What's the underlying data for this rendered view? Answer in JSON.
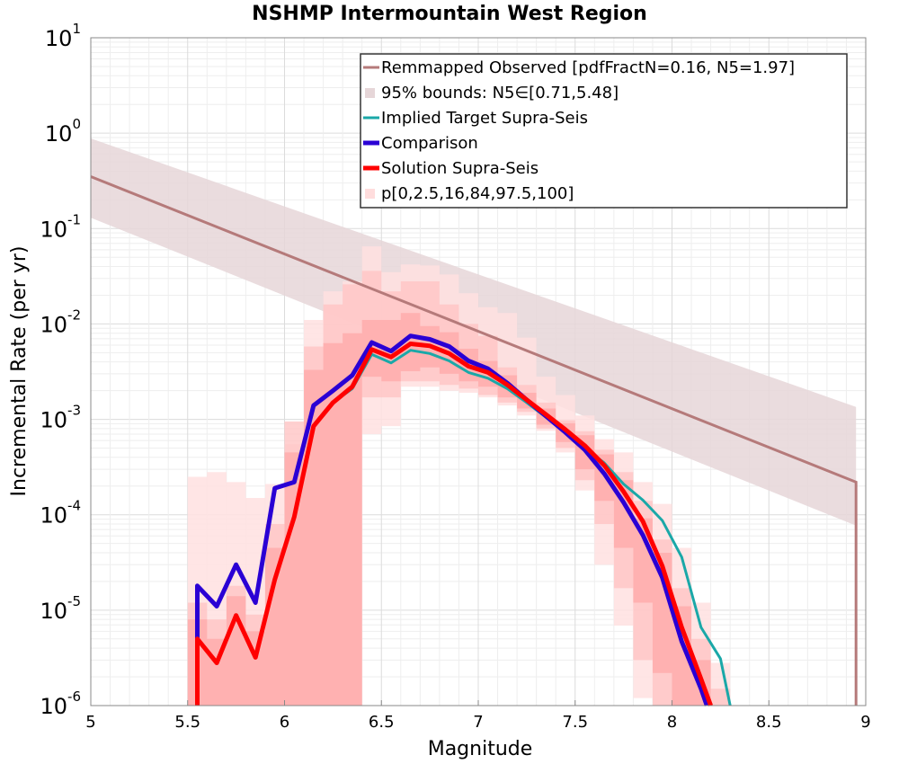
{
  "chart_data": {
    "type": "line",
    "title": "NSHMP Intermountain West Region",
    "xlabel": "Magnitude",
    "ylabel": "Incremental Rate (per yr)",
    "xlim": [
      5,
      9
    ],
    "ylim": [
      1e-06,
      10
    ],
    "yscale": "log",
    "grid": true,
    "legend_position": "top-right",
    "x_ticks": [
      "5",
      "5.5",
      "6",
      "6.5",
      "7",
      "7.5",
      "8",
      "8.5",
      "9"
    ],
    "y_ticks": [
      {
        "base": "10",
        "exp": "1"
      },
      {
        "base": "10",
        "exp": "0"
      },
      {
        "base": "10",
        "exp": "-1"
      },
      {
        "base": "10",
        "exp": "-2"
      },
      {
        "base": "10",
        "exp": "-3"
      },
      {
        "base": "10",
        "exp": "-4"
      },
      {
        "base": "10",
        "exp": "-5"
      },
      {
        "base": "10",
        "exp": "-6"
      }
    ],
    "legend": [
      {
        "label": "Remmapped Observed [pdfFractN=0.16, N5=1.97]",
        "color": "#b57a7a",
        "kind": "line"
      },
      {
        "label": "95% bounds: N5∈[0.71,5.48]",
        "color": "#e6d6d8",
        "kind": "band"
      },
      {
        "label": "Implied Target Supra-Seis",
        "color": "#1aa8a8",
        "kind": "line"
      },
      {
        "label": "Comparison",
        "color": "#2a00d4",
        "kind": "thick"
      },
      {
        "label": "Solution Supra-Seis",
        "color": "#ff0000",
        "kind": "thick"
      },
      {
        "label": "p[0,2.5,16,84,97.5,100]",
        "color": "#ffdddd",
        "kind": "band"
      }
    ],
    "colors": {
      "observed": "#b57a7a",
      "observed_band": "#e6d6d8",
      "target": "#1aa8a8",
      "comparison": "#2a00d4",
      "solution": "#ff0000",
      "band_outer": "#ffe0e0",
      "band_mid": "#ffc4c4",
      "band_inner": "#ffa8a8",
      "grid": "#e4e4e4"
    },
    "series": [
      {
        "name": "Remmapped Observed [pdfFractN=0.16, N5=1.97]",
        "x": [
          5.0,
          8.95,
          8.95
        ],
        "y": [
          0.35,
          0.00022,
          1e-06
        ]
      },
      {
        "name": "95% bounds: N5∈[0.71,5.48]",
        "x": [
          5.0,
          8.95
        ],
        "y_lower": [
          0.13,
          7.7e-05
        ],
        "y_upper": [
          0.88,
          0.00135
        ]
      },
      {
        "name": "Implied Target Supra-Seis",
        "x": [
          5.55,
          5.55,
          5.65,
          5.75,
          5.85,
          5.95,
          6.05,
          6.15,
          6.25,
          6.35,
          6.45,
          6.55,
          6.65,
          6.75,
          6.85,
          6.95,
          7.05,
          7.15,
          7.25,
          7.35,
          7.45,
          7.55,
          7.65,
          7.75,
          7.85,
          7.95,
          8.05,
          8.15,
          8.25,
          8.3
        ],
        "y": [
          1e-06,
          5e-06,
          2.8e-06,
          8.8e-06,
          3.2e-06,
          2.1e-05,
          9.5e-05,
          0.00085,
          0.0015,
          0.0021,
          0.0048,
          0.0039,
          0.0053,
          0.0049,
          0.0041,
          0.0031,
          0.0027,
          0.0021,
          0.0015,
          0.00105,
          0.00072,
          0.0005,
          0.00035,
          0.00021,
          0.000142,
          8.7e-05,
          3.6e-05,
          6.6e-06,
          3.1e-06,
          1e-06
        ]
      },
      {
        "name": "Comparison",
        "x": [
          5.55,
          5.55,
          5.65,
          5.75,
          5.85,
          5.95,
          6.05,
          6.15,
          6.25,
          6.35,
          6.45,
          6.55,
          6.65,
          6.75,
          6.85,
          6.95,
          7.05,
          7.15,
          7.25,
          7.35,
          7.45,
          7.55,
          7.65,
          7.75,
          7.85,
          7.95,
          8.05,
          8.15,
          8.18
        ],
        "y": [
          1e-06,
          1.8e-05,
          1.1e-05,
          3e-05,
          1.2e-05,
          0.00019,
          0.00022,
          0.0014,
          0.002,
          0.0029,
          0.0064,
          0.0052,
          0.0075,
          0.0069,
          0.0058,
          0.0041,
          0.0034,
          0.0024,
          0.0016,
          0.00108,
          0.00073,
          0.00048,
          0.00027,
          0.000135,
          6.1e-05,
          2.2e-05,
          4.7e-06,
          1.5e-06,
          1e-06
        ]
      },
      {
        "name": "Solution Supra-Seis",
        "x": [
          5.55,
          5.55,
          5.65,
          5.75,
          5.85,
          5.95,
          6.05,
          6.15,
          6.25,
          6.35,
          6.45,
          6.55,
          6.65,
          6.75,
          6.85,
          6.95,
          7.05,
          7.15,
          7.25,
          7.35,
          7.45,
          7.55,
          7.65,
          7.75,
          7.85,
          7.95,
          8.05,
          8.15,
          8.2
        ],
        "y": [
          1e-06,
          5e-06,
          2.8e-06,
          8.8e-06,
          3.2e-06,
          2.1e-05,
          9.5e-05,
          0.00085,
          0.0015,
          0.0022,
          0.0054,
          0.0045,
          0.0062,
          0.0059,
          0.0049,
          0.0036,
          0.0031,
          0.0023,
          0.0016,
          0.00112,
          0.00078,
          0.00053,
          0.00033,
          0.000175,
          8.5e-05,
          2.9e-05,
          6.6e-06,
          1.9e-06,
          1e-06
        ]
      },
      {
        "name": "p[0,2.5,16,84,97.5,100]",
        "x": [
          5.55,
          5.65,
          5.75,
          5.85,
          5.95,
          6.05,
          6.15,
          6.25,
          6.35,
          6.45,
          6.55,
          6.65,
          6.75,
          6.85,
          6.95,
          7.05,
          7.15,
          7.25,
          7.35,
          7.45,
          7.55,
          7.65,
          7.75,
          7.85,
          7.95,
          8.05,
          8.15,
          8.25
        ],
        "p0": [
          1e-06,
          1e-06,
          1e-06,
          1e-06,
          1e-06,
          1e-06,
          1e-06,
          1e-06,
          1e-06,
          0.0007,
          0.00085,
          0.0022,
          0.0022,
          0.002,
          0.0019,
          0.0017,
          0.0014,
          0.0011,
          0.00076,
          0.00045,
          0.00018,
          3e-05,
          6.9e-06,
          1.2e-06,
          1e-06,
          1e-06,
          1e-06,
          1e-06
        ],
        "p2_5": [
          1e-06,
          1e-06,
          1e-06,
          1e-06,
          1e-06,
          1e-06,
          1e-06,
          1e-06,
          1e-06,
          0.0017,
          0.0017,
          0.0025,
          0.0025,
          0.0023,
          0.0021,
          0.0018,
          0.0015,
          0.0012,
          0.0008,
          0.0005,
          0.00023,
          8e-05,
          1.7e-05,
          3e-06,
          1e-06,
          1e-06,
          1e-06,
          1e-06
        ],
        "p16": [
          1e-06,
          1e-06,
          1e-06,
          1e-06,
          1e-06,
          1e-06,
          1e-06,
          1e-06,
          1e-06,
          0.0028,
          0.0025,
          0.0032,
          0.0035,
          0.003,
          0.0025,
          0.0022,
          0.0017,
          0.0013,
          0.00088,
          0.00058,
          0.0003,
          0.00014,
          4.5e-05,
          1.2e-05,
          2.2e-06,
          1e-06,
          1e-06,
          1e-06
        ],
        "p84": [
          8e-06,
          5e-06,
          1.4e-05,
          6e-06,
          4.5e-05,
          0.00045,
          0.0033,
          0.0063,
          0.008,
          0.011,
          0.011,
          0.013,
          0.0095,
          0.0082,
          0.0055,
          0.0041,
          0.0029,
          0.0019,
          0.0013,
          0.00091,
          0.00068,
          0.00043,
          0.00023,
          9.2e-05,
          4e-05,
          1.1e-05,
          3e-06,
          1e-06
        ],
        "p97_5": [
          1.2e-05,
          8e-06,
          1.8e-05,
          9e-06,
          8e-05,
          0.00095,
          0.0058,
          0.016,
          0.026,
          0.036,
          0.022,
          0.028,
          0.028,
          0.016,
          0.01,
          0.0075,
          0.0035,
          0.0023,
          0.0015,
          0.00098,
          0.00075,
          0.00048,
          0.00028,
          0.00014,
          5.5e-05,
          1.7e-05,
          5e-06,
          1.5e-06
        ],
        "p100": [
          0.00025,
          0.00028,
          0.00022,
          0.00015,
          0.00021,
          0.00055,
          0.011,
          0.022,
          0.028,
          0.065,
          0.035,
          0.042,
          0.041,
          0.033,
          0.021,
          0.015,
          0.013,
          0.0072,
          0.0028,
          0.0018,
          0.0011,
          0.00062,
          0.00045,
          0.00022,
          0.00013,
          4.5e-05,
          1.2e-05,
          2.8e-06
        ]
      }
    ]
  }
}
